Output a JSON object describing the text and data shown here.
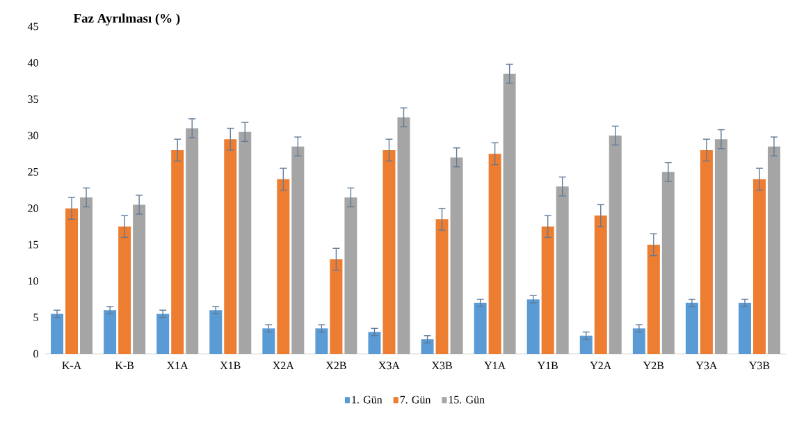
{
  "chart_data": {
    "type": "bar",
    "title": "Faz Ayrılması (% )",
    "categories": [
      "K-A",
      "K-B",
      "X1A",
      "X1B",
      "X2A",
      "X2B",
      "X3A",
      "X3B",
      "Y1A",
      "Y1B",
      "Y2A",
      "Y2B",
      "Y3A",
      "Y3B"
    ],
    "series": [
      {
        "name": "1. Gün",
        "color": "#5b9bd5",
        "values": [
          5.5,
          6,
          5.5,
          6,
          3.5,
          3.5,
          3,
          2,
          7,
          7.5,
          2.5,
          3.5,
          7,
          7
        ],
        "errors": [
          0.5,
          0.5,
          0.5,
          0.5,
          0.5,
          0.5,
          0.5,
          0.5,
          0.5,
          0.5,
          0.5,
          0.5,
          0.5,
          0.5
        ]
      },
      {
        "name": "7. Gün",
        "color": "#ed7d31",
        "values": [
          20,
          17.5,
          28,
          29.5,
          24,
          13,
          28,
          18.5,
          27.5,
          17.5,
          19,
          15,
          28,
          24
        ],
        "errors": [
          1.5,
          1.5,
          1.5,
          1.5,
          1.5,
          1.5,
          1.5,
          1.5,
          1.5,
          1.5,
          1.5,
          1.5,
          1.5,
          1.5
        ]
      },
      {
        "name": "15. Gün",
        "color": "#a5a5a5",
        "values": [
          21.5,
          20.5,
          31,
          30.5,
          28.5,
          21.5,
          32.5,
          27,
          38.5,
          23,
          30,
          25,
          29.5,
          28.5
        ],
        "errors": [
          1.3,
          1.3,
          1.3,
          1.3,
          1.3,
          1.3,
          1.3,
          1.3,
          1.3,
          1.3,
          1.3,
          1.3,
          1.3,
          1.3
        ]
      }
    ],
    "ylim": [
      0,
      45
    ],
    "yticks": [
      0,
      5,
      10,
      15,
      20,
      25,
      30,
      35,
      40,
      45
    ],
    "grid": false,
    "legend": "bottom"
  }
}
